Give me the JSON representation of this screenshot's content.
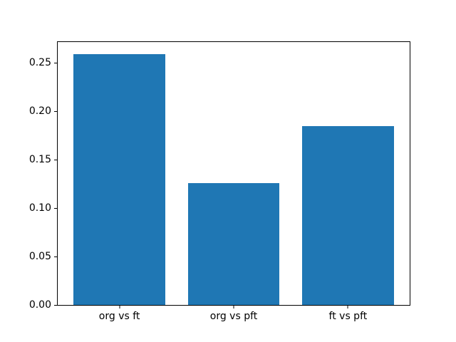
{
  "chart_data": {
    "type": "bar",
    "categories": [
      "org vs ft",
      "org vs pft",
      "ft vs pft"
    ],
    "values": [
      0.259,
      0.126,
      0.185
    ],
    "title": "",
    "xlabel": "",
    "ylabel": "",
    "ylim": [
      0,
      0.2716
    ],
    "yticks": [
      0,
      0.05,
      0.1,
      0.15,
      0.2,
      0.25
    ],
    "ytick_labels": [
      "0.00",
      "0.05",
      "0.10",
      "0.15",
      "0.20",
      "0.25"
    ],
    "grid": false,
    "legend": null,
    "bar_color": "#1f77b4",
    "axis_color": "#000000",
    "background_color": "#ffffff",
    "bar_width_fraction": 0.2597,
    "bar_center_fractions": [
      0.1753,
      0.5,
      0.8247
    ]
  }
}
